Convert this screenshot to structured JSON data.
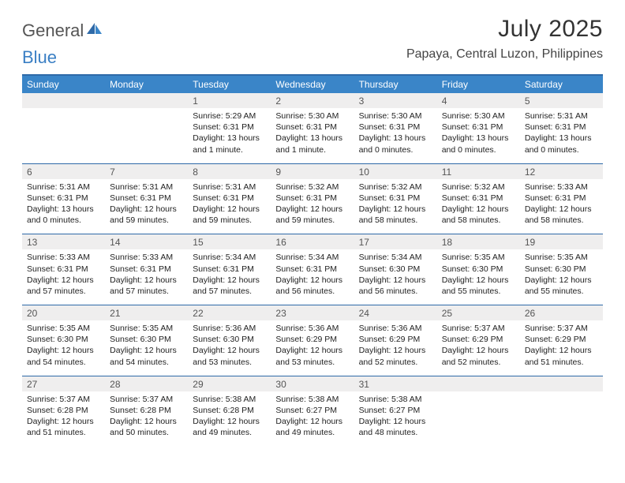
{
  "brand": {
    "part1": "General",
    "part2": "Blue"
  },
  "title": "July 2025",
  "location": "Papaya, Central Luzon, Philippines",
  "colors": {
    "header_bg": "#3a85c8",
    "header_border": "#2f6aa8",
    "daynum_bg": "#efeeee",
    "brand_blue": "#3a7fc4"
  },
  "day_headers": [
    "Sunday",
    "Monday",
    "Tuesday",
    "Wednesday",
    "Thursday",
    "Friday",
    "Saturday"
  ],
  "weeks": [
    [
      null,
      null,
      {
        "n": "1",
        "sr": "5:29 AM",
        "ss": "6:31 PM",
        "dl": "13 hours and 1 minute."
      },
      {
        "n": "2",
        "sr": "5:30 AM",
        "ss": "6:31 PM",
        "dl": "13 hours and 1 minute."
      },
      {
        "n": "3",
        "sr": "5:30 AM",
        "ss": "6:31 PM",
        "dl": "13 hours and 0 minutes."
      },
      {
        "n": "4",
        "sr": "5:30 AM",
        "ss": "6:31 PM",
        "dl": "13 hours and 0 minutes."
      },
      {
        "n": "5",
        "sr": "5:31 AM",
        "ss": "6:31 PM",
        "dl": "13 hours and 0 minutes."
      }
    ],
    [
      {
        "n": "6",
        "sr": "5:31 AM",
        "ss": "6:31 PM",
        "dl": "13 hours and 0 minutes."
      },
      {
        "n": "7",
        "sr": "5:31 AM",
        "ss": "6:31 PM",
        "dl": "12 hours and 59 minutes."
      },
      {
        "n": "8",
        "sr": "5:31 AM",
        "ss": "6:31 PM",
        "dl": "12 hours and 59 minutes."
      },
      {
        "n": "9",
        "sr": "5:32 AM",
        "ss": "6:31 PM",
        "dl": "12 hours and 59 minutes."
      },
      {
        "n": "10",
        "sr": "5:32 AM",
        "ss": "6:31 PM",
        "dl": "12 hours and 58 minutes."
      },
      {
        "n": "11",
        "sr": "5:32 AM",
        "ss": "6:31 PM",
        "dl": "12 hours and 58 minutes."
      },
      {
        "n": "12",
        "sr": "5:33 AM",
        "ss": "6:31 PM",
        "dl": "12 hours and 58 minutes."
      }
    ],
    [
      {
        "n": "13",
        "sr": "5:33 AM",
        "ss": "6:31 PM",
        "dl": "12 hours and 57 minutes."
      },
      {
        "n": "14",
        "sr": "5:33 AM",
        "ss": "6:31 PM",
        "dl": "12 hours and 57 minutes."
      },
      {
        "n": "15",
        "sr": "5:34 AM",
        "ss": "6:31 PM",
        "dl": "12 hours and 57 minutes."
      },
      {
        "n": "16",
        "sr": "5:34 AM",
        "ss": "6:31 PM",
        "dl": "12 hours and 56 minutes."
      },
      {
        "n": "17",
        "sr": "5:34 AM",
        "ss": "6:30 PM",
        "dl": "12 hours and 56 minutes."
      },
      {
        "n": "18",
        "sr": "5:35 AM",
        "ss": "6:30 PM",
        "dl": "12 hours and 55 minutes."
      },
      {
        "n": "19",
        "sr": "5:35 AM",
        "ss": "6:30 PM",
        "dl": "12 hours and 55 minutes."
      }
    ],
    [
      {
        "n": "20",
        "sr": "5:35 AM",
        "ss": "6:30 PM",
        "dl": "12 hours and 54 minutes."
      },
      {
        "n": "21",
        "sr": "5:35 AM",
        "ss": "6:30 PM",
        "dl": "12 hours and 54 minutes."
      },
      {
        "n": "22",
        "sr": "5:36 AM",
        "ss": "6:30 PM",
        "dl": "12 hours and 53 minutes."
      },
      {
        "n": "23",
        "sr": "5:36 AM",
        "ss": "6:29 PM",
        "dl": "12 hours and 53 minutes."
      },
      {
        "n": "24",
        "sr": "5:36 AM",
        "ss": "6:29 PM",
        "dl": "12 hours and 52 minutes."
      },
      {
        "n": "25",
        "sr": "5:37 AM",
        "ss": "6:29 PM",
        "dl": "12 hours and 52 minutes."
      },
      {
        "n": "26",
        "sr": "5:37 AM",
        "ss": "6:29 PM",
        "dl": "12 hours and 51 minutes."
      }
    ],
    [
      {
        "n": "27",
        "sr": "5:37 AM",
        "ss": "6:28 PM",
        "dl": "12 hours and 51 minutes."
      },
      {
        "n": "28",
        "sr": "5:37 AM",
        "ss": "6:28 PM",
        "dl": "12 hours and 50 minutes."
      },
      {
        "n": "29",
        "sr": "5:38 AM",
        "ss": "6:28 PM",
        "dl": "12 hours and 49 minutes."
      },
      {
        "n": "30",
        "sr": "5:38 AM",
        "ss": "6:27 PM",
        "dl": "12 hours and 49 minutes."
      },
      {
        "n": "31",
        "sr": "5:38 AM",
        "ss": "6:27 PM",
        "dl": "12 hours and 48 minutes."
      },
      null,
      null
    ]
  ],
  "labels": {
    "sunrise": "Sunrise: ",
    "sunset": "Sunset: ",
    "daylight": "Daylight: "
  }
}
